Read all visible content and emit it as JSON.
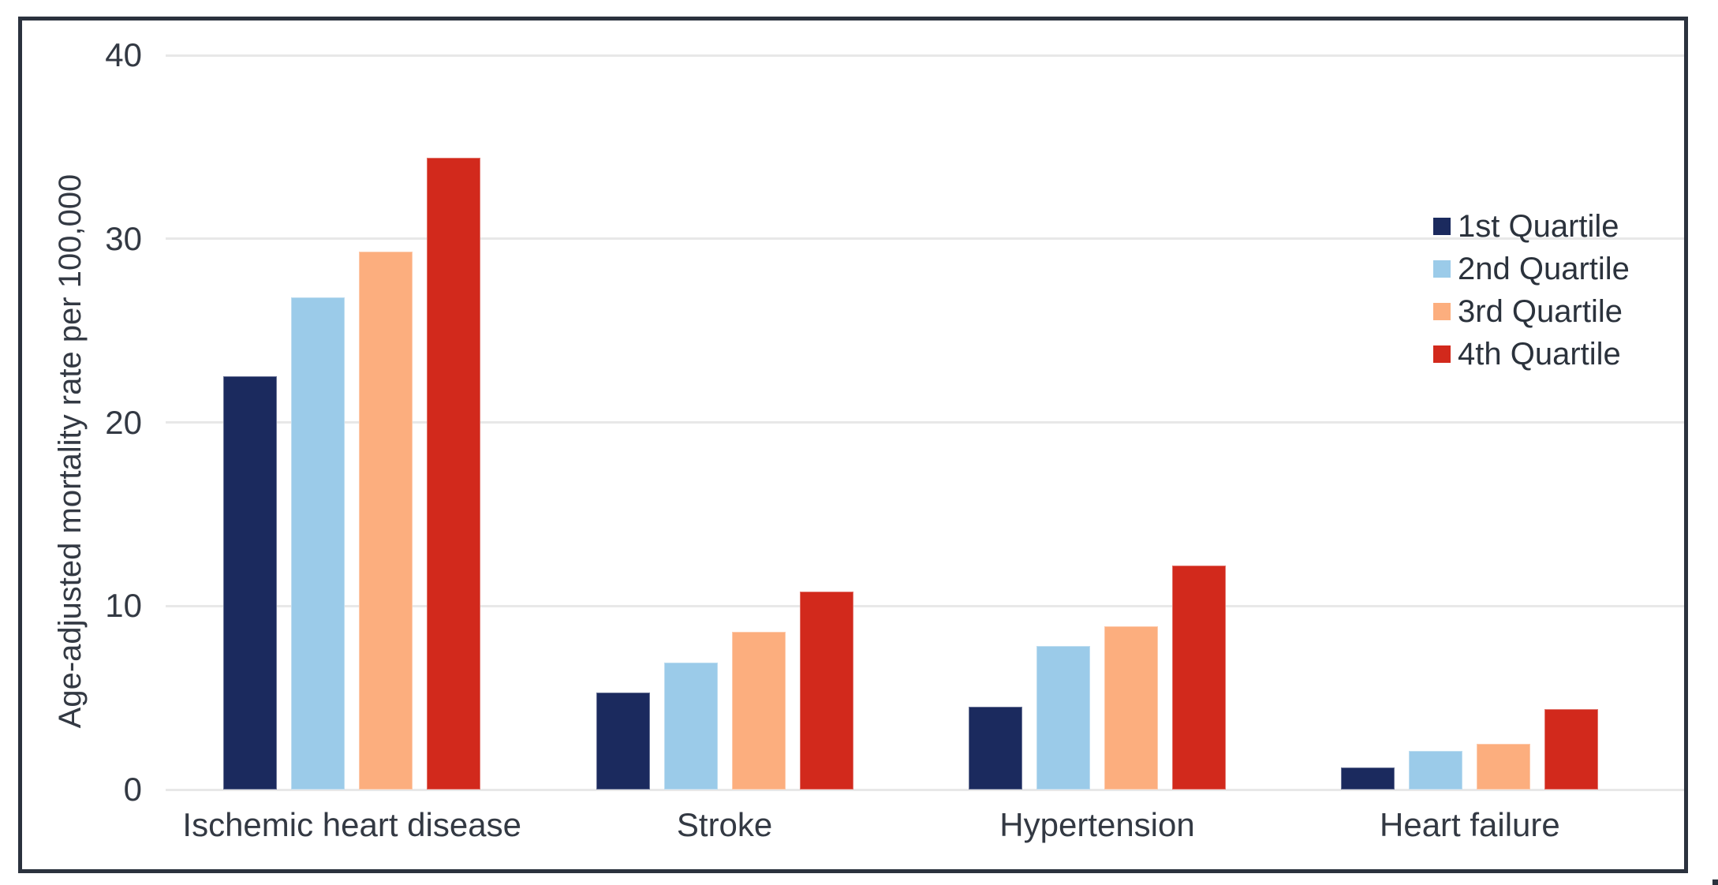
{
  "colors": {
    "frame_border": "#2b323e",
    "gridline": "#e8e8e8",
    "text": "#333943",
    "legend_text": "#2b323c",
    "background": "#ffffff"
  },
  "chart_data": {
    "type": "bar",
    "title": "",
    "xlabel": "",
    "ylabel": "Age-adjusted mortality rate per 100,000",
    "ylim": [
      0,
      40
    ],
    "yticks": [
      0,
      10,
      20,
      30,
      40
    ],
    "grid": "horizontal",
    "legend_position": "upper right",
    "categories": [
      "Ischemic heart disease",
      "Stroke",
      "Hypertension",
      "Heart failure"
    ],
    "series": [
      {
        "name": "1st Quartile",
        "color": "#1b2a5e",
        "values": [
          22.5,
          5.3,
          4.5,
          1.2
        ]
      },
      {
        "name": "2nd Quartile",
        "color": "#9bcbe9",
        "values": [
          26.8,
          6.9,
          7.8,
          2.1
        ]
      },
      {
        "name": "3rd Quartile",
        "color": "#fcae7e",
        "values": [
          29.3,
          8.6,
          8.9,
          2.5
        ]
      },
      {
        "name": "4th Quartile",
        "color": "#d2291c",
        "values": [
          34.4,
          10.8,
          12.2,
          4.4
        ]
      }
    ]
  }
}
